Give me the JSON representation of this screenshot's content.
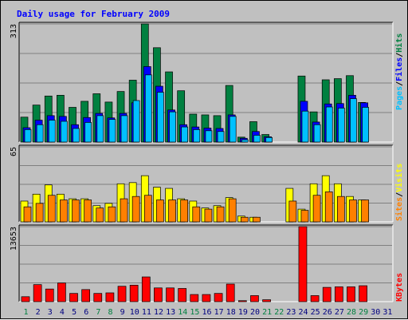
{
  "title": "Daily usage for February 2009",
  "colors": {
    "hits": "#008040",
    "files": "#0000ff",
    "pages": "#00c0ff",
    "visits": "#ffff00",
    "sites": "#ff8000",
    "kbytes": "#ff0000",
    "title": "#0000ff",
    "weekend_day": "#008040",
    "weekday": "#000080",
    "panel_bg": "#c0c0c0",
    "gridline": "#808080"
  },
  "chart_data": [
    {
      "type": "bar",
      "panel": "hits-files-pages",
      "title": "Daily usage for February 2009",
      "ymax_label": "313",
      "ylim": [
        0,
        313
      ],
      "legend": [
        "Pages",
        "Files",
        "Hits"
      ],
      "legend_separator": "/",
      "grid": true,
      "categories": [
        "1",
        "2",
        "3",
        "4",
        "5",
        "6",
        "7",
        "8",
        "9",
        "10",
        "11",
        "12",
        "13",
        "14",
        "15",
        "16",
        "17",
        "18",
        "19",
        "20",
        "21",
        "22",
        "23",
        "24",
        "25",
        "26",
        "27",
        "28",
        "29",
        "30",
        "31"
      ],
      "series": [
        {
          "name": "Hits",
          "values": [
            66,
            98,
            122,
            124,
            92,
            108,
            128,
            106,
            134,
            164,
            313,
            250,
            186,
            136,
            74,
            72,
            70,
            150,
            13,
            54,
            20,
            0,
            0,
            175,
            80,
            165,
            168,
            176,
            105,
            0,
            0
          ]
        },
        {
          "name": "Files",
          "values": [
            38,
            58,
            70,
            68,
            46,
            65,
            76,
            64,
            76,
            104,
            200,
            148,
            85,
            46,
            40,
            37,
            36,
            72,
            10,
            28,
            14,
            0,
            0,
            108,
            53,
            101,
            102,
            124,
            104,
            0,
            0
          ]
        },
        {
          "name": "Pages",
          "values": [
            33,
            46,
            58,
            55,
            36,
            52,
            70,
            60,
            70,
            110,
            178,
            132,
            80,
            40,
            33,
            30,
            28,
            68,
            6,
            18,
            12,
            0,
            0,
            82,
            46,
            93,
            90,
            115,
            92,
            0,
            0
          ]
        }
      ]
    },
    {
      "type": "bar",
      "panel": "visits-sites",
      "ymax_label": "65",
      "ylim": [
        0,
        65
      ],
      "legend": [
        "Sites",
        "Visits"
      ],
      "legend_separator": "/",
      "grid": true,
      "categories": [
        "1",
        "2",
        "3",
        "4",
        "5",
        "6",
        "7",
        "8",
        "9",
        "10",
        "11",
        "12",
        "13",
        "14",
        "15",
        "16",
        "17",
        "18",
        "19",
        "20",
        "21",
        "22",
        "23",
        "24",
        "25",
        "26",
        "27",
        "28",
        "29",
        "30",
        "31"
      ],
      "series": [
        {
          "name": "Visits",
          "values": [
            18,
            24,
            32,
            24,
            20,
            20,
            14,
            16,
            33,
            34,
            40,
            30,
            29,
            20,
            18,
            12,
            14,
            21,
            5,
            4,
            0,
            0,
            29,
            11,
            33,
            40,
            33,
            22,
            19,
            0,
            0
          ]
        },
        {
          "name": "Sites",
          "values": [
            13,
            16,
            23,
            19,
            19,
            19,
            12,
            13,
            20,
            22,
            23,
            19,
            19,
            19,
            13,
            11,
            13,
            20,
            4,
            4,
            0,
            0,
            18,
            10,
            23,
            26,
            22,
            19,
            19,
            0,
            0
          ]
        }
      ]
    },
    {
      "type": "bar",
      "panel": "kbytes",
      "ymax_label": "13653",
      "ylim": [
        0,
        13653
      ],
      "legend": [
        "KBytes"
      ],
      "grid": true,
      "categories": [
        "1",
        "2",
        "3",
        "4",
        "5",
        "6",
        "7",
        "8",
        "9",
        "10",
        "11",
        "12",
        "13",
        "14",
        "15",
        "16",
        "17",
        "18",
        "19",
        "20",
        "21",
        "22",
        "23",
        "24",
        "25",
        "26",
        "27",
        "28",
        "29",
        "30",
        "31"
      ],
      "series": [
        {
          "name": "KBytes",
          "values": [
            900,
            3100,
            2300,
            3400,
            1500,
            2200,
            1500,
            1600,
            2800,
            3000,
            4500,
            2500,
            2500,
            2400,
            1300,
            1300,
            1500,
            3200,
            180,
            1100,
            350,
            0,
            0,
            13653,
            1100,
            2600,
            2700,
            2700,
            2900,
            0,
            0
          ]
        }
      ]
    }
  ],
  "weekend_days": [
    "1",
    "7",
    "8",
    "14",
    "15",
    "21",
    "22",
    "28",
    "29"
  ]
}
